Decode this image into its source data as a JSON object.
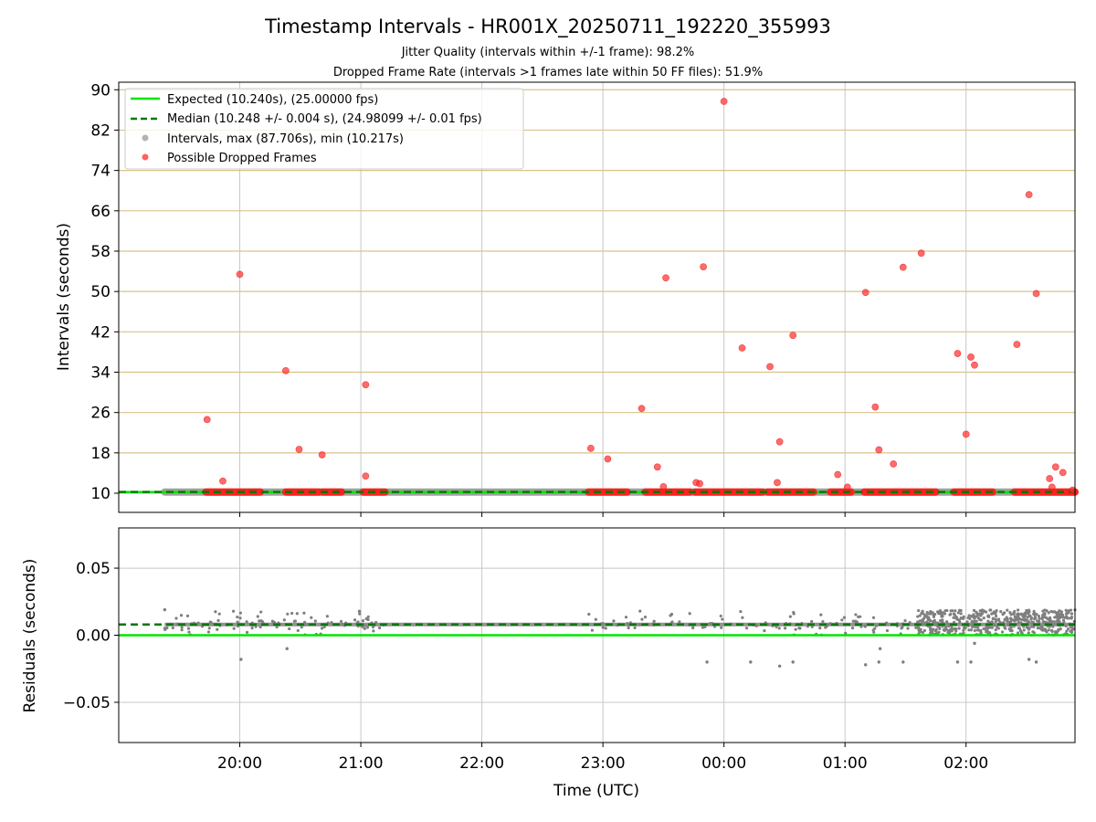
{
  "chart_data": [
    {
      "type": "scatter",
      "title": "Timestamp Intervals - HR001X_20250711_192220_355993",
      "subtitles": [
        "Jitter Quality (intervals within +/-1 frame): 98.2%",
        "Dropped Frame Rate (intervals >1 frames late within 50 FF files): 51.9%"
      ],
      "xlabel": "",
      "ylabel": "Intervals (seconds)",
      "x_unit": "hours",
      "xlim": [
        19.0,
        26.9
      ],
      "ylim": [
        6.2,
        91.5
      ],
      "y_ticks": [
        10,
        18,
        26,
        34,
        42,
        50,
        58,
        66,
        74,
        82,
        90
      ],
      "y_gridlines_color": "#d9c38a",
      "x_ticks": [
        {
          "x": 20,
          "label": "20:00"
        },
        {
          "x": 21,
          "label": "21:00"
        },
        {
          "x": 22,
          "label": "22:00"
        },
        {
          "x": 23,
          "label": "23:00"
        },
        {
          "x": 24,
          "label": "00:00"
        },
        {
          "x": 25,
          "label": "01:00"
        },
        {
          "x": 26,
          "label": "02:00"
        }
      ],
      "show_x_tick_labels": false,
      "legend": {
        "placement": "top-left",
        "entries": [
          {
            "label": "Expected (10.240s), (25.00000 fps)",
            "kind": "solid-line",
            "color": "#00e600"
          },
          {
            "label": "Median (10.248 +/- 0.004 s), (24.98099 +/- 0.01 fps)",
            "kind": "dashed-line",
            "color": "#007a00"
          },
          {
            "label": "Intervals, max (87.706s), min (10.217s)",
            "kind": "marker",
            "color": "#9a9a9a"
          },
          {
            "label": "Possible Dropped Frames",
            "kind": "marker",
            "color": "#ff2b2b"
          }
        ]
      },
      "lines": {
        "expected": {
          "y": 10.24,
          "color": "#00e600"
        },
        "median": {
          "y": 10.248,
          "color": "#007a00"
        }
      },
      "interval_band": {
        "x_start": 19.38,
        "x_end": 26.9,
        "y": 10.24,
        "color": "#8a8a8a"
      },
      "dropped_frames_baseline_segments": [
        [
          19.72,
          20.17
        ],
        [
          20.38,
          20.66
        ],
        [
          20.68,
          20.84
        ],
        [
          21.02,
          21.2
        ],
        [
          22.88,
          23.2
        ],
        [
          23.35,
          23.72
        ],
        [
          23.76,
          24.0
        ],
        [
          24.0,
          24.32
        ],
        [
          24.36,
          24.74
        ],
        [
          24.88,
          25.05
        ],
        [
          25.16,
          25.75
        ],
        [
          25.9,
          26.22
        ],
        [
          26.4,
          26.9
        ]
      ],
      "dropped_frames_outliers": [
        {
          "x": 19.73,
          "y": 24.6
        },
        {
          "x": 19.86,
          "y": 12.4
        },
        {
          "x": 20.0,
          "y": 53.4
        },
        {
          "x": 20.38,
          "y": 34.3
        },
        {
          "x": 20.49,
          "y": 18.7
        },
        {
          "x": 20.68,
          "y": 17.6
        },
        {
          "x": 21.04,
          "y": 13.4
        },
        {
          "x": 21.04,
          "y": 31.5
        },
        {
          "x": 22.9,
          "y": 18.9
        },
        {
          "x": 23.04,
          "y": 16.8
        },
        {
          "x": 23.32,
          "y": 26.8
        },
        {
          "x": 23.45,
          "y": 15.2
        },
        {
          "x": 23.5,
          "y": 11.3
        },
        {
          "x": 23.52,
          "y": 52.7
        },
        {
          "x": 23.77,
          "y": 12.1
        },
        {
          "x": 23.8,
          "y": 11.9
        },
        {
          "x": 23.83,
          "y": 54.9
        },
        {
          "x": 24.0,
          "y": 87.7
        },
        {
          "x": 24.15,
          "y": 38.8
        },
        {
          "x": 24.38,
          "y": 35.1
        },
        {
          "x": 24.44,
          "y": 12.1
        },
        {
          "x": 24.46,
          "y": 20.2
        },
        {
          "x": 24.57,
          "y": 41.3
        },
        {
          "x": 24.94,
          "y": 13.7
        },
        {
          "x": 25.02,
          "y": 11.2
        },
        {
          "x": 25.17,
          "y": 49.8
        },
        {
          "x": 25.25,
          "y": 27.1
        },
        {
          "x": 25.28,
          "y": 18.6
        },
        {
          "x": 25.4,
          "y": 15.8
        },
        {
          "x": 25.48,
          "y": 54.8
        },
        {
          "x": 25.63,
          "y": 57.6
        },
        {
          "x": 25.93,
          "y": 37.7
        },
        {
          "x": 26.0,
          "y": 21.7
        },
        {
          "x": 26.04,
          "y": 37.0
        },
        {
          "x": 26.07,
          "y": 35.4
        },
        {
          "x": 26.42,
          "y": 39.5
        },
        {
          "x": 26.52,
          "y": 69.2
        },
        {
          "x": 26.58,
          "y": 49.6
        },
        {
          "x": 26.69,
          "y": 12.9
        },
        {
          "x": 26.71,
          "y": 11.2
        },
        {
          "x": 26.74,
          "y": 15.2
        },
        {
          "x": 26.8,
          "y": 14.1
        },
        {
          "x": 26.88,
          "y": 10.6
        }
      ]
    },
    {
      "type": "scatter",
      "title": "",
      "xlabel": "Time (UTC)",
      "ylabel": "Residuals (seconds)",
      "xlim": [
        19.0,
        26.9
      ],
      "ylim": [
        -0.08,
        0.08
      ],
      "y_ticks": [
        {
          "y": 0.05,
          "label": "0.05"
        },
        {
          "y": 0.0,
          "label": "0.00"
        },
        {
          "y": -0.05,
          "label": "−0.05"
        }
      ],
      "x_ticks": [
        {
          "x": 20,
          "label": "20:00"
        },
        {
          "x": 21,
          "label": "21:00"
        },
        {
          "x": 22,
          "label": "22:00"
        },
        {
          "x": 23,
          "label": "23:00"
        },
        {
          "x": 24,
          "label": "00:00"
        },
        {
          "x": 25,
          "label": "01:00"
        },
        {
          "x": 26,
          "label": "02:00"
        }
      ],
      "grid": true,
      "lines": {
        "expected": {
          "y": 0.0,
          "color": "#00e600"
        },
        "median": {
          "y": 0.008,
          "color": "#007a00"
        }
      },
      "residual_band": {
        "x_start": 19.38,
        "x_end": 26.9,
        "y": 0.008,
        "color": "#7f7f7f"
      },
      "residual_clusters": [
        {
          "x_start": 19.38,
          "x_end": 21.2,
          "y_low": 0.0,
          "y_high": 0.018
        },
        {
          "x_start": 22.88,
          "x_end": 25.6,
          "y_low": 0.0,
          "y_high": 0.018
        },
        {
          "x_start": 25.6,
          "x_end": 26.9,
          "y_low": 0.0,
          "y_high": 0.019
        }
      ],
      "residual_outliers": [
        {
          "x": 20.01,
          "y": -0.018
        },
        {
          "x": 20.39,
          "y": -0.01
        },
        {
          "x": 23.86,
          "y": -0.02
        },
        {
          "x": 24.22,
          "y": -0.02
        },
        {
          "x": 24.46,
          "y": -0.023
        },
        {
          "x": 24.57,
          "y": -0.02
        },
        {
          "x": 25.17,
          "y": -0.022
        },
        {
          "x": 25.28,
          "y": -0.02
        },
        {
          "x": 25.29,
          "y": -0.01
        },
        {
          "x": 25.48,
          "y": -0.02
        },
        {
          "x": 25.93,
          "y": -0.02
        },
        {
          "x": 26.04,
          "y": -0.02
        },
        {
          "x": 26.07,
          "y": -0.006
        },
        {
          "x": 26.52,
          "y": -0.018
        },
        {
          "x": 26.58,
          "y": -0.02
        },
        {
          "x": 19.38,
          "y": 0.019
        }
      ]
    }
  ]
}
